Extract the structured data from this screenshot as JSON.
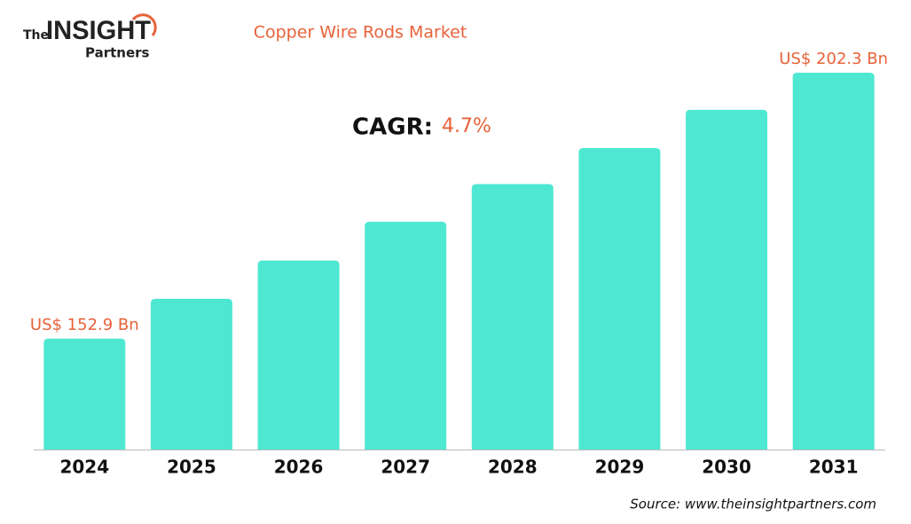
{
  "chart_data": {
    "type": "bar",
    "title": "Copper Wire Rods Market",
    "categories": [
      "2024",
      "2025",
      "2026",
      "2027",
      "2028",
      "2029",
      "2030",
      "2031"
    ],
    "values": [
      152.9,
      160.3,
      167.4,
      174.6,
      181.6,
      188.3,
      195.4,
      202.3
    ],
    "value_labels": [
      "US$ 152.9 Bn",
      null,
      null,
      null,
      null,
      null,
      null,
      "US$ 202.3 Bn"
    ],
    "color": "#4ee8d2",
    "ylim": [
      132.3,
      202.3
    ],
    "annotations": [
      "CAGR:",
      "4.7%"
    ],
    "logo": [
      "The",
      "INSIGHT",
      "Partners"
    ],
    "source": "Source: www.theinsightpartners.com"
  }
}
